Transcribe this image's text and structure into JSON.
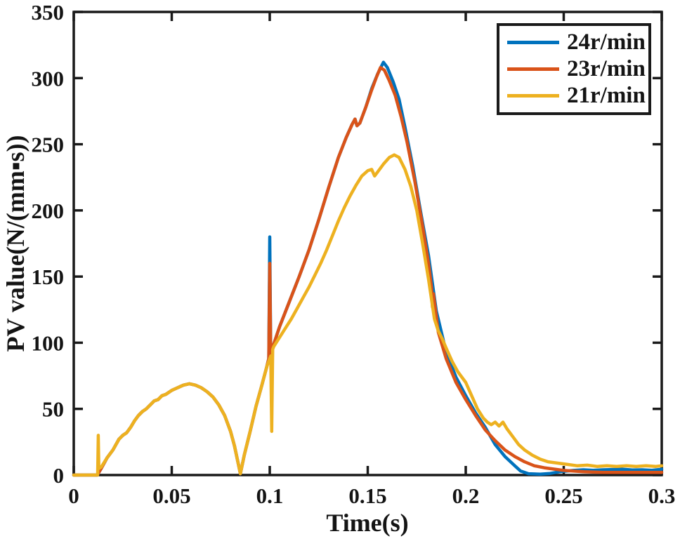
{
  "chart_data": {
    "type": "line",
    "title": "",
    "xlabel": "Time(s)",
    "ylabel": "PV value(N/(mm▪s))",
    "xlim": [
      0,
      0.3
    ],
    "ylim": [
      0,
      350
    ],
    "grid": false,
    "legend_position": "top-right",
    "axis_color": "#1a1a1a",
    "xticks": [
      {
        "value": 0,
        "label": "0"
      },
      {
        "value": 0.05,
        "label": "0.05"
      },
      {
        "value": 0.1,
        "label": "0.1"
      },
      {
        "value": 0.15,
        "label": "0.15"
      },
      {
        "value": 0.2,
        "label": "0.2"
      },
      {
        "value": 0.25,
        "label": "0.25"
      },
      {
        "value": 0.3,
        "label": "0.3"
      }
    ],
    "yticks": [
      {
        "value": 0,
        "label": "0"
      },
      {
        "value": 50,
        "label": "50"
      },
      {
        "value": 100,
        "label": "100"
      },
      {
        "value": 150,
        "label": "150"
      },
      {
        "value": 200,
        "label": "200"
      },
      {
        "value": 250,
        "label": "250"
      },
      {
        "value": 300,
        "label": "300"
      },
      {
        "value": 350,
        "label": "350"
      }
    ],
    "series": [
      {
        "name": "24r/min",
        "color": "#0072BD",
        "points": [
          [
            0,
            0
          ],
          [
            0.012,
            0
          ],
          [
            0.014,
            5
          ],
          [
            0.017,
            13
          ],
          [
            0.02,
            19
          ],
          [
            0.023,
            27
          ],
          [
            0.025,
            30
          ],
          [
            0.027,
            32
          ],
          [
            0.029,
            36
          ],
          [
            0.031,
            41
          ],
          [
            0.033,
            45
          ],
          [
            0.035,
            48
          ],
          [
            0.037,
            50
          ],
          [
            0.039,
            53
          ],
          [
            0.041,
            56
          ],
          [
            0.043,
            57
          ],
          [
            0.045,
            60
          ],
          [
            0.047,
            61
          ],
          [
            0.05,
            64
          ],
          [
            0.053,
            66
          ],
          [
            0.056,
            68
          ],
          [
            0.059,
            69
          ],
          [
            0.062,
            68
          ],
          [
            0.065,
            66
          ],
          [
            0.068,
            63
          ],
          [
            0.071,
            59
          ],
          [
            0.074,
            53
          ],
          [
            0.077,
            45
          ],
          [
            0.08,
            33
          ],
          [
            0.082,
            22
          ],
          [
            0.084,
            8
          ],
          [
            0.085,
            1
          ],
          [
            0.087,
            15
          ],
          [
            0.09,
            33
          ],
          [
            0.093,
            52
          ],
          [
            0.096,
            68
          ],
          [
            0.0985,
            82
          ],
          [
            0.0995,
            88
          ],
          [
            0.1,
            180
          ],
          [
            0.1005,
            92
          ],
          [
            0.105,
            112
          ],
          [
            0.11,
            131
          ],
          [
            0.115,
            150
          ],
          [
            0.12,
            170
          ],
          [
            0.125,
            193
          ],
          [
            0.13,
            217
          ],
          [
            0.135,
            240
          ],
          [
            0.139,
            255
          ],
          [
            0.142,
            265
          ],
          [
            0.1435,
            269
          ],
          [
            0.1445,
            264
          ],
          [
            0.146,
            266
          ],
          [
            0.149,
            278
          ],
          [
            0.152,
            292
          ],
          [
            0.155,
            303
          ],
          [
            0.158,
            312
          ],
          [
            0.16,
            308
          ],
          [
            0.163,
            297
          ],
          [
            0.166,
            284
          ],
          [
            0.169,
            263
          ],
          [
            0.173,
            233
          ],
          [
            0.177,
            199
          ],
          [
            0.181,
            166
          ],
          [
            0.185,
            124
          ],
          [
            0.19,
            93
          ],
          [
            0.195,
            74
          ],
          [
            0.2,
            60
          ],
          [
            0.205,
            47
          ],
          [
            0.21,
            36
          ],
          [
            0.215,
            23
          ],
          [
            0.22,
            14
          ],
          [
            0.225,
            7
          ],
          [
            0.228,
            3
          ],
          [
            0.232,
            1
          ],
          [
            0.238,
            0.7
          ],
          [
            0.243,
            1.2
          ],
          [
            0.248,
            2.5
          ],
          [
            0.255,
            3.5
          ],
          [
            0.26,
            4
          ],
          [
            0.265,
            3.6
          ],
          [
            0.27,
            4
          ],
          [
            0.275,
            4.2
          ],
          [
            0.28,
            4.4
          ],
          [
            0.285,
            3.8
          ],
          [
            0.29,
            4
          ],
          [
            0.295,
            3.6
          ],
          [
            0.3,
            4.4
          ]
        ]
      },
      {
        "name": "23r/min",
        "color": "#D95319",
        "points": [
          [
            0,
            0
          ],
          [
            0.012,
            0
          ],
          [
            0.014,
            5
          ],
          [
            0.017,
            13
          ],
          [
            0.02,
            19
          ],
          [
            0.023,
            27
          ],
          [
            0.025,
            30
          ],
          [
            0.027,
            32
          ],
          [
            0.029,
            36
          ],
          [
            0.031,
            41
          ],
          [
            0.033,
            45
          ],
          [
            0.035,
            48
          ],
          [
            0.037,
            50
          ],
          [
            0.039,
            53
          ],
          [
            0.041,
            56
          ],
          [
            0.043,
            57
          ],
          [
            0.045,
            60
          ],
          [
            0.047,
            61
          ],
          [
            0.05,
            64
          ],
          [
            0.053,
            66
          ],
          [
            0.056,
            68
          ],
          [
            0.059,
            69
          ],
          [
            0.062,
            68
          ],
          [
            0.065,
            66
          ],
          [
            0.068,
            63
          ],
          [
            0.071,
            59
          ],
          [
            0.074,
            53
          ],
          [
            0.077,
            45
          ],
          [
            0.08,
            33
          ],
          [
            0.082,
            22
          ],
          [
            0.084,
            8
          ],
          [
            0.085,
            1
          ],
          [
            0.087,
            15
          ],
          [
            0.09,
            33
          ],
          [
            0.093,
            52
          ],
          [
            0.096,
            68
          ],
          [
            0.0985,
            82
          ],
          [
            0.0995,
            88
          ],
          [
            0.1,
            160
          ],
          [
            0.1005,
            92
          ],
          [
            0.105,
            112
          ],
          [
            0.11,
            131
          ],
          [
            0.115,
            150
          ],
          [
            0.12,
            170
          ],
          [
            0.125,
            193
          ],
          [
            0.13,
            217
          ],
          [
            0.135,
            240
          ],
          [
            0.139,
            255
          ],
          [
            0.142,
            265
          ],
          [
            0.1435,
            269
          ],
          [
            0.1445,
            264
          ],
          [
            0.146,
            266
          ],
          [
            0.149,
            278
          ],
          [
            0.152,
            291
          ],
          [
            0.1545,
            301
          ],
          [
            0.1565,
            308
          ],
          [
            0.1585,
            306
          ],
          [
            0.161,
            298
          ],
          [
            0.164,
            287
          ],
          [
            0.167,
            271
          ],
          [
            0.17,
            252
          ],
          [
            0.174,
            222
          ],
          [
            0.178,
            188
          ],
          [
            0.181,
            160
          ],
          [
            0.1825,
            142
          ],
          [
            0.183,
            127
          ],
          [
            0.1835,
            137
          ],
          [
            0.186,
            108
          ],
          [
            0.19,
            88
          ],
          [
            0.195,
            70
          ],
          [
            0.2,
            57
          ],
          [
            0.205,
            45
          ],
          [
            0.21,
            34
          ],
          [
            0.215,
            26
          ],
          [
            0.22,
            19
          ],
          [
            0.225,
            14
          ],
          [
            0.23,
            10
          ],
          [
            0.235,
            7
          ],
          [
            0.24,
            5.5
          ],
          [
            0.245,
            4.5
          ],
          [
            0.25,
            3.5
          ],
          [
            0.26,
            2.5
          ],
          [
            0.27,
            2
          ],
          [
            0.28,
            2
          ],
          [
            0.29,
            2
          ],
          [
            0.3,
            2
          ]
        ]
      },
      {
        "name": "21r/min",
        "color": "#EDB120",
        "points": [
          [
            0,
            0
          ],
          [
            0.0122,
            0
          ],
          [
            0.0125,
            30
          ],
          [
            0.0128,
            5
          ],
          [
            0.014,
            6
          ],
          [
            0.017,
            13
          ],
          [
            0.02,
            19
          ],
          [
            0.023,
            27
          ],
          [
            0.025,
            30
          ],
          [
            0.027,
            32
          ],
          [
            0.029,
            36
          ],
          [
            0.031,
            41
          ],
          [
            0.033,
            45
          ],
          [
            0.035,
            48
          ],
          [
            0.037,
            50
          ],
          [
            0.039,
            53
          ],
          [
            0.041,
            56
          ],
          [
            0.043,
            57
          ],
          [
            0.045,
            60
          ],
          [
            0.047,
            61
          ],
          [
            0.05,
            64
          ],
          [
            0.053,
            66
          ],
          [
            0.056,
            68
          ],
          [
            0.059,
            69
          ],
          [
            0.062,
            68
          ],
          [
            0.065,
            66
          ],
          [
            0.068,
            63
          ],
          [
            0.071,
            59
          ],
          [
            0.074,
            53
          ],
          [
            0.077,
            45
          ],
          [
            0.08,
            33
          ],
          [
            0.082,
            22
          ],
          [
            0.084,
            8
          ],
          [
            0.085,
            1
          ],
          [
            0.087,
            15
          ],
          [
            0.09,
            33
          ],
          [
            0.093,
            52
          ],
          [
            0.096,
            68
          ],
          [
            0.0985,
            82
          ],
          [
            0.0995,
            86
          ],
          [
            0.1005,
            90
          ],
          [
            0.101,
            33
          ],
          [
            0.1015,
            95
          ],
          [
            0.102,
            97
          ],
          [
            0.105,
            104
          ],
          [
            0.108,
            111
          ],
          [
            0.111,
            118
          ],
          [
            0.114,
            126
          ],
          [
            0.117,
            134
          ],
          [
            0.12,
            142
          ],
          [
            0.123,
            151
          ],
          [
            0.126,
            160
          ],
          [
            0.129,
            170
          ],
          [
            0.132,
            181
          ],
          [
            0.135,
            192
          ],
          [
            0.138,
            202
          ],
          [
            0.141,
            211
          ],
          [
            0.144,
            219
          ],
          [
            0.147,
            226
          ],
          [
            0.15,
            230
          ],
          [
            0.152,
            231
          ],
          [
            0.1535,
            226
          ],
          [
            0.155,
            229
          ],
          [
            0.158,
            235
          ],
          [
            0.161,
            240
          ],
          [
            0.1635,
            242
          ],
          [
            0.166,
            240
          ],
          [
            0.169,
            231
          ],
          [
            0.172,
            218
          ],
          [
            0.175,
            200
          ],
          [
            0.178,
            175
          ],
          [
            0.181,
            148
          ],
          [
            0.184,
            118
          ],
          [
            0.186,
            109
          ],
          [
            0.188,
            103
          ],
          [
            0.19,
            96
          ],
          [
            0.193,
            86
          ],
          [
            0.196,
            78
          ],
          [
            0.2,
            70
          ],
          [
            0.203,
            60
          ],
          [
            0.206,
            50
          ],
          [
            0.209,
            43
          ],
          [
            0.211,
            40
          ],
          [
            0.213,
            38
          ],
          [
            0.215,
            40
          ],
          [
            0.217,
            37
          ],
          [
            0.219,
            40
          ],
          [
            0.221,
            35
          ],
          [
            0.224,
            29
          ],
          [
            0.227,
            23
          ],
          [
            0.23,
            19
          ],
          [
            0.234,
            15
          ],
          [
            0.238,
            12
          ],
          [
            0.242,
            10
          ],
          [
            0.247,
            9
          ],
          [
            0.252,
            8
          ],
          [
            0.257,
            7
          ],
          [
            0.262,
            7.5
          ],
          [
            0.267,
            6.5
          ],
          [
            0.272,
            7
          ],
          [
            0.277,
            6.5
          ],
          [
            0.282,
            7
          ],
          [
            0.287,
            6.5
          ],
          [
            0.292,
            7
          ],
          [
            0.297,
            6.5
          ],
          [
            0.3,
            7
          ]
        ]
      }
    ]
  }
}
